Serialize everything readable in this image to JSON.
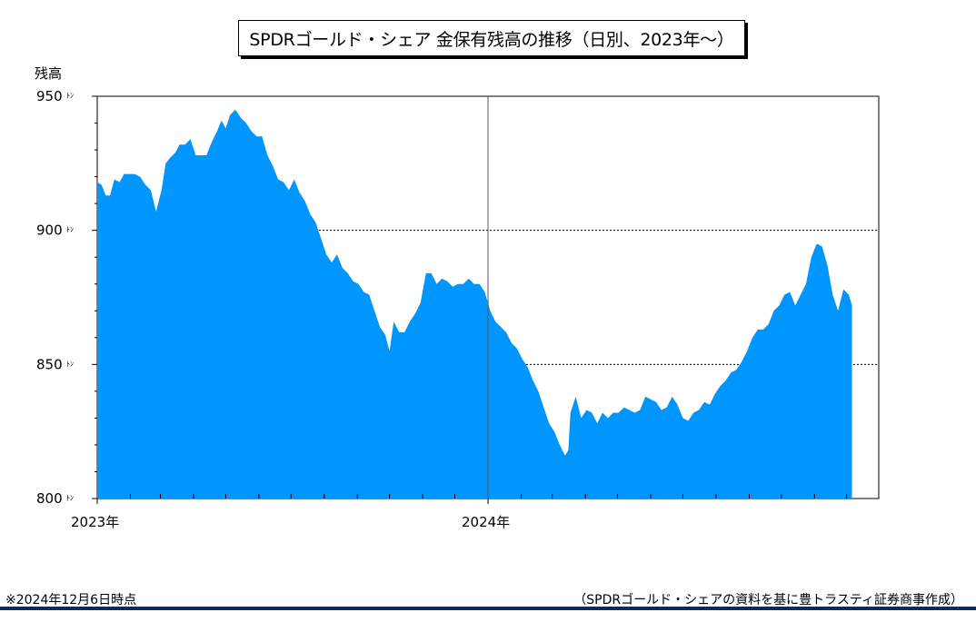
{
  "chart_data": {
    "type": "area",
    "title": "SPDRゴールド・シェア 金保有残高の推移（日別、2023年～）",
    "ylabel": "残高",
    "y_unit": "ﾄﾝ",
    "ylim": [
      800,
      950
    ],
    "yticks": [
      "800",
      "850",
      "900",
      "950"
    ],
    "x_tick_labels": [
      {
        "label": "2023年",
        "x": "2023-01-01"
      },
      {
        "label": "2024年",
        "x": "2024-01-01"
      }
    ],
    "xlim": [
      "2023-01-01",
      "2024-12-31"
    ],
    "reference_lines": [
      900,
      850
    ],
    "fill_color": "#0096ff",
    "points": [
      [
        "2023-01-01",
        918
      ],
      [
        "2023-01-05",
        917
      ],
      [
        "2023-01-09",
        913
      ],
      [
        "2023-01-13",
        913
      ],
      [
        "2023-01-17",
        919
      ],
      [
        "2023-01-22",
        918
      ],
      [
        "2023-01-26",
        921
      ],
      [
        "2023-01-31",
        921
      ],
      [
        "2023-02-05",
        921
      ],
      [
        "2023-02-10",
        920
      ],
      [
        "2023-02-15",
        917
      ],
      [
        "2023-02-20",
        915
      ],
      [
        "2023-02-25",
        907
      ],
      [
        "2023-03-02",
        915
      ],
      [
        "2023-03-06",
        925
      ],
      [
        "2023-03-10",
        927
      ],
      [
        "2023-03-15",
        929
      ],
      [
        "2023-03-19",
        932
      ],
      [
        "2023-03-24",
        932
      ],
      [
        "2023-03-29",
        934
      ],
      [
        "2023-04-03",
        928
      ],
      [
        "2023-04-08",
        928
      ],
      [
        "2023-04-13",
        928
      ],
      [
        "2023-04-18",
        933
      ],
      [
        "2023-04-23",
        937
      ],
      [
        "2023-04-27",
        941
      ],
      [
        "2023-05-01",
        938
      ],
      [
        "2023-05-05",
        943
      ],
      [
        "2023-05-10",
        945
      ],
      [
        "2023-05-15",
        942
      ],
      [
        "2023-05-20",
        940
      ],
      [
        "2023-05-25",
        937
      ],
      [
        "2023-05-30",
        935
      ],
      [
        "2023-06-04",
        935
      ],
      [
        "2023-06-09",
        928
      ],
      [
        "2023-06-14",
        924
      ],
      [
        "2023-06-19",
        919
      ],
      [
        "2023-06-24",
        918
      ],
      [
        "2023-06-29",
        915
      ],
      [
        "2023-07-04",
        919
      ],
      [
        "2023-07-09",
        914
      ],
      [
        "2023-07-14",
        911
      ],
      [
        "2023-07-19",
        906
      ],
      [
        "2023-07-24",
        903
      ],
      [
        "2023-07-29",
        897
      ],
      [
        "2023-08-03",
        891
      ],
      [
        "2023-08-08",
        888
      ],
      [
        "2023-08-13",
        891
      ],
      [
        "2023-08-18",
        886
      ],
      [
        "2023-08-23",
        884
      ],
      [
        "2023-08-28",
        881
      ],
      [
        "2023-09-02",
        880
      ],
      [
        "2023-09-07",
        877
      ],
      [
        "2023-09-12",
        876
      ],
      [
        "2023-09-17",
        870
      ],
      [
        "2023-09-22",
        864
      ],
      [
        "2023-09-27",
        861
      ],
      [
        "2023-10-01",
        855
      ],
      [
        "2023-10-05",
        866
      ],
      [
        "2023-10-10",
        862
      ],
      [
        "2023-10-15",
        862
      ],
      [
        "2023-10-20",
        866
      ],
      [
        "2023-10-25",
        869
      ],
      [
        "2023-10-30",
        873
      ],
      [
        "2023-11-04",
        884
      ],
      [
        "2023-11-09",
        884
      ],
      [
        "2023-11-14",
        880
      ],
      [
        "2023-11-19",
        882
      ],
      [
        "2023-11-24",
        881
      ],
      [
        "2023-11-29",
        879
      ],
      [
        "2023-12-04",
        880
      ],
      [
        "2023-12-09",
        880
      ],
      [
        "2023-12-14",
        882
      ],
      [
        "2023-12-19",
        880
      ],
      [
        "2023-12-24",
        880
      ],
      [
        "2023-12-29",
        877
      ],
      [
        "2024-01-03",
        870
      ],
      [
        "2024-01-08",
        866
      ],
      [
        "2024-01-13",
        864
      ],
      [
        "2024-01-18",
        862
      ],
      [
        "2024-01-23",
        858
      ],
      [
        "2024-01-28",
        856
      ],
      [
        "2024-02-02",
        852
      ],
      [
        "2024-02-07",
        849
      ],
      [
        "2024-02-12",
        844
      ],
      [
        "2024-02-17",
        840
      ],
      [
        "2024-02-22",
        834
      ],
      [
        "2024-02-27",
        828
      ],
      [
        "2024-03-03",
        825
      ],
      [
        "2024-03-08",
        820
      ],
      [
        "2024-03-13",
        816
      ],
      [
        "2024-03-16",
        818
      ],
      [
        "2024-03-18",
        832
      ],
      [
        "2024-03-23",
        838
      ],
      [
        "2024-03-28",
        830
      ],
      [
        "2024-04-02",
        833
      ],
      [
        "2024-04-07",
        832
      ],
      [
        "2024-04-12",
        828
      ],
      [
        "2024-04-17",
        832
      ],
      [
        "2024-04-22",
        830
      ],
      [
        "2024-04-27",
        832
      ],
      [
        "2024-05-02",
        832
      ],
      [
        "2024-05-07",
        834
      ],
      [
        "2024-05-12",
        833
      ],
      [
        "2024-05-17",
        832
      ],
      [
        "2024-05-22",
        833
      ],
      [
        "2024-05-27",
        838
      ],
      [
        "2024-06-01",
        837
      ],
      [
        "2024-06-06",
        836
      ],
      [
        "2024-06-11",
        833
      ],
      [
        "2024-06-16",
        834
      ],
      [
        "2024-06-21",
        838
      ],
      [
        "2024-06-26",
        835
      ],
      [
        "2024-07-01",
        830
      ],
      [
        "2024-07-06",
        829
      ],
      [
        "2024-07-11",
        832
      ],
      [
        "2024-07-16",
        833
      ],
      [
        "2024-07-21",
        836
      ],
      [
        "2024-07-26",
        835
      ],
      [
        "2024-07-31",
        839
      ],
      [
        "2024-08-05",
        842
      ],
      [
        "2024-08-10",
        844
      ],
      [
        "2024-08-15",
        847
      ],
      [
        "2024-08-20",
        848
      ],
      [
        "2024-08-25",
        851
      ],
      [
        "2024-08-30",
        855
      ],
      [
        "2024-09-04",
        860
      ],
      [
        "2024-09-09",
        863
      ],
      [
        "2024-09-14",
        863
      ],
      [
        "2024-09-19",
        865
      ],
      [
        "2024-09-24",
        870
      ],
      [
        "2024-09-29",
        872
      ],
      [
        "2024-10-04",
        876
      ],
      [
        "2024-10-09",
        877
      ],
      [
        "2024-10-14",
        872
      ],
      [
        "2024-10-19",
        876
      ],
      [
        "2024-10-24",
        880
      ],
      [
        "2024-10-29",
        890
      ],
      [
        "2024-11-03",
        895
      ],
      [
        "2024-11-08",
        894
      ],
      [
        "2024-11-13",
        887
      ],
      [
        "2024-11-18",
        876
      ],
      [
        "2024-11-23",
        870
      ],
      [
        "2024-11-28",
        878
      ],
      [
        "2024-12-03",
        876
      ],
      [
        "2024-12-06",
        872
      ]
    ]
  },
  "footnote": "※2024年12月6日時点",
  "source": "（SPDRゴールド・シェアの資料を基に豊トラスティ証券商事作成）"
}
